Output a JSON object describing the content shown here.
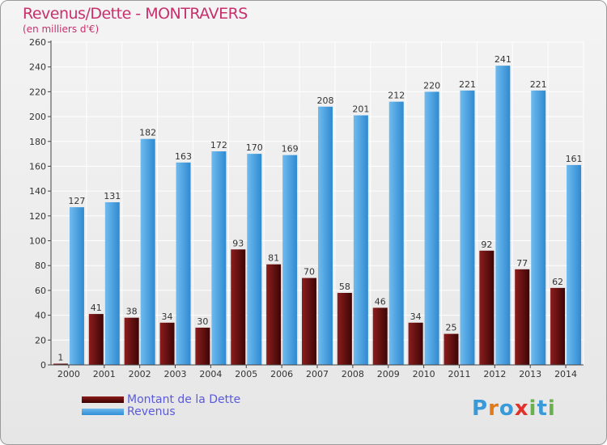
{
  "chart_data": {
    "type": "bar",
    "title": "Revenus/Dette - MONTRAVERS",
    "subtitle": "(en milliers d'€)",
    "categories": [
      "2000",
      "2001",
      "2002",
      "2003",
      "2004",
      "2005",
      "2006",
      "2007",
      "2008",
      "2009",
      "2010",
      "2011",
      "2012",
      "2013",
      "2014"
    ],
    "series": [
      {
        "name": "Montant de la Dette",
        "color": "#6b0f0f",
        "values": [
          1,
          41,
          38,
          34,
          30,
          93,
          81,
          70,
          58,
          46,
          34,
          25,
          92,
          77,
          62
        ]
      },
      {
        "name": "Revenus",
        "color": "#4aa3e6",
        "values": [
          127,
          131,
          182,
          163,
          172,
          170,
          169,
          208,
          201,
          212,
          220,
          221,
          241,
          221,
          161
        ]
      }
    ],
    "ylim": [
      0,
      260
    ],
    "yticks": [
      0,
      20,
      40,
      60,
      80,
      100,
      120,
      140,
      160,
      180,
      200,
      220,
      240,
      260
    ],
    "grid": true,
    "legend_position": "bottom-left"
  },
  "branding": {
    "logo_text": "Proxiti"
  }
}
